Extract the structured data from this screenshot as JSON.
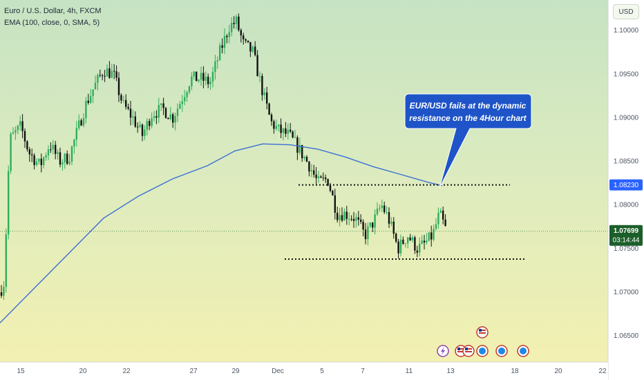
{
  "header": {
    "symbol_line": "Euro / U.S. Dollar, 4h, FXCM",
    "indicator_line": "EMA (100, close, 0, SMA, 5)"
  },
  "currency_button": "USD",
  "callout": {
    "line1": "EUR/USD fails at the dynamic",
    "line2": "resistance on the 4Hour chart",
    "color": "#1e54c8"
  },
  "price_tags": {
    "resistance": "1.08230",
    "last_price": "1.07699",
    "countdown": "03:14:44"
  },
  "colors": {
    "bull": "#2fae5a",
    "bear": "#111111",
    "ema": "#3b6fd6",
    "tag_blue": "#2962ff",
    "tag_green": "#1b5e2a"
  },
  "chart_data": {
    "type": "candlestick",
    "y_tick_labels": [
      "1.10000",
      "1.09500",
      "1.09000",
      "1.08500",
      "1.08000",
      "1.07500",
      "1.07000",
      "1.06500"
    ],
    "y_tick_values": [
      1.1,
      1.095,
      1.09,
      1.085,
      1.08,
      1.075,
      1.07,
      1.065
    ],
    "x_tick_labels": [
      "15",
      "20",
      "22",
      "27",
      "29",
      "Dec",
      "5",
      "7",
      "11",
      "13",
      "18",
      "20",
      "22"
    ],
    "ylim": [
      1.062,
      1.1035
    ],
    "last_price": 1.07699,
    "resistance_level": 1.0823,
    "support_level": 1.0738,
    "close_path": [
      [
        0,
        1.07
      ],
      [
        6,
        1.0712
      ],
      [
        14,
        1.0875
      ],
      [
        30,
        1.089
      ],
      [
        42,
        1.086
      ],
      [
        58,
        1.0845
      ],
      [
        72,
        1.087
      ],
      [
        86,
        1.085
      ],
      [
        100,
        1.0855
      ],
      [
        110,
        1.088
      ],
      [
        124,
        1.0915
      ],
      [
        136,
        1.0935
      ],
      [
        150,
        1.0955
      ],
      [
        164,
        1.095
      ],
      [
        178,
        1.0915
      ],
      [
        192,
        1.09
      ],
      [
        206,
        1.088
      ],
      [
        220,
        1.0905
      ],
      [
        236,
        1.091
      ],
      [
        250,
        1.09
      ],
      [
        262,
        1.092
      ],
      [
        276,
        1.0945
      ],
      [
        290,
        1.0945
      ],
      [
        304,
        1.094
      ],
      [
        318,
        1.0975
      ],
      [
        332,
        1.1005
      ],
      [
        342,
        1.101
      ],
      [
        352,
        1.0985
      ],
      [
        366,
        1.0975
      ],
      [
        380,
        1.093
      ],
      [
        392,
        1.0895
      ],
      [
        404,
        1.0885
      ],
      [
        418,
        1.088
      ],
      [
        432,
        1.0865
      ],
      [
        448,
        1.0845
      ],
      [
        460,
        1.0825
      ],
      [
        474,
        1.083
      ],
      [
        488,
        1.079
      ],
      [
        500,
        1.079
      ],
      [
        514,
        1.0785
      ],
      [
        528,
        1.0765
      ],
      [
        540,
        1.078
      ],
      [
        552,
        1.08
      ],
      [
        562,
        1.0785
      ],
      [
        576,
        1.075
      ],
      [
        590,
        1.0765
      ],
      [
        604,
        1.075
      ],
      [
        614,
        1.0755
      ],
      [
        626,
        1.0765
      ],
      [
        636,
        1.079
      ],
      [
        646,
        1.077
      ]
    ],
    "ema_path": [
      [
        0,
        1.0665
      ],
      [
        50,
        1.0705
      ],
      [
        100,
        1.0745
      ],
      [
        150,
        1.0785
      ],
      [
        200,
        1.081
      ],
      [
        250,
        1.083
      ],
      [
        300,
        1.0845
      ],
      [
        340,
        1.0862
      ],
      [
        380,
        1.087
      ],
      [
        420,
        1.0869
      ],
      [
        460,
        1.0864
      ],
      [
        500,
        1.0855
      ],
      [
        540,
        1.0844
      ],
      [
        580,
        1.0835
      ],
      [
        620,
        1.0826
      ],
      [
        640,
        1.0822
      ]
    ]
  }
}
